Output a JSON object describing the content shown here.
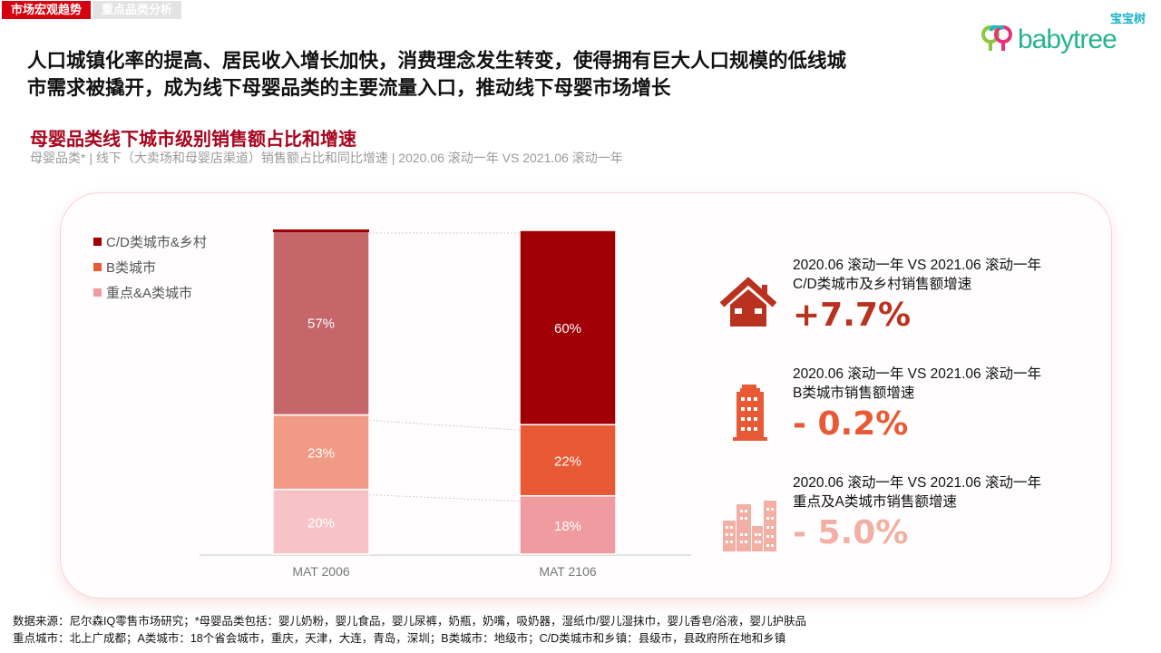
{
  "tabs": [
    {
      "label": "市场宏观趋势",
      "active": true
    },
    {
      "label": "重点品类分析",
      "active": false
    }
  ],
  "logo": {
    "cn": "宝宝树",
    "en": "babytree"
  },
  "headline": {
    "line1": "人口城镇化率的提高、居民收入增长加快，消费理念发生转变，使得拥有巨大人口规模的低线城",
    "line2": "市需求被撬开，成为线下母婴品类的主要流量入口，推动线下母婴市场增长"
  },
  "chart_data": {
    "type": "bar",
    "stacked": true,
    "title": "母婴品类线下城市级别销售额占比和增速",
    "subtitle": "母婴品类* | 线下（大卖场和母婴店渠道）销售额占比和同比增速 | 2020.06 滚动一年 VS 2021.06 滚动一年",
    "categories": [
      "MAT 2006",
      "MAT 2106"
    ],
    "series": [
      {
        "name": "重点&A类城市",
        "values": [
          20,
          18
        ],
        "labels": [
          "20%",
          "18%"
        ],
        "color": "#f09ba0",
        "color_2006": "#f7c3c6"
      },
      {
        "name": "B类城市",
        "values": [
          23,
          22
        ],
        "labels": [
          "23%",
          "22%"
        ],
        "color": "#e85a35",
        "color_2006": "#f19a85"
      },
      {
        "name": "C/D类城市&乡村",
        "values": [
          57,
          60
        ],
        "labels": [
          "57%",
          "60%"
        ],
        "color": "#a00005",
        "color_2006": "#c5666b"
      }
    ],
    "legend": [
      "C/D类城市&乡村",
      "B类城市",
      "重点&A类城市"
    ],
    "legend_position": "top-left",
    "ylim": [
      0,
      100
    ],
    "grid": false
  },
  "kpis": [
    {
      "icon": "house-icon",
      "line1": "2020.06 滚动一年 VS 2021.06 滚动一年",
      "line2": "C/D类城市及乡村销售额增速",
      "value": "+7.7%",
      "color": "#b8321f"
    },
    {
      "icon": "office-building-icon",
      "line1": "2020.06 滚动一年 VS 2021.06 滚动一年",
      "line2": "B类城市销售额增速",
      "value": "- 0.2%",
      "color": "#e85a35"
    },
    {
      "icon": "city-buildings-icon",
      "line1": "2020.06 滚动一年 VS 2021.06 滚动一年",
      "line2": "重点及A类城市销售额增速",
      "value": "- 5.0%",
      "color": "#f2b0a4"
    }
  ],
  "footnote": {
    "line1": "数据来源：尼尔森IQ零售市场研究；*母婴品类包括：婴儿奶粉，婴儿食品，婴儿尿裤，奶瓶，奶嘴，吸奶器，湿纸巾/婴儿湿抹巾，婴儿香皂/浴液，婴儿护肤品",
    "line2": "重点城市：北上广成都；A类城市：18个省会城市，重庆，天津，大连，青岛，深圳；B类城市：地级市；C/D类城市和乡镇：县级市，县政府所在地和乡镇"
  }
}
